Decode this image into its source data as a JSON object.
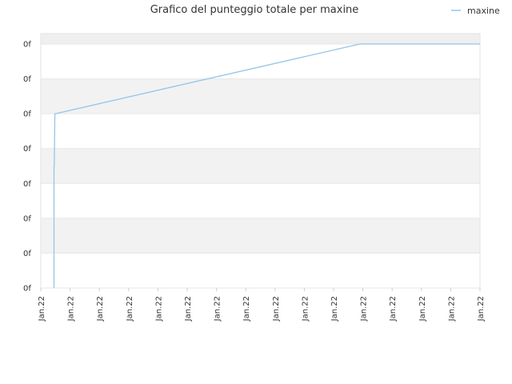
{
  "chart_data": {
    "type": "line",
    "title": "Grafico del punteggio totale per maxine",
    "xlabel": "",
    "ylabel": "",
    "legend_position": "top-right",
    "grid": true,
    "x_tick_labels": [
      "Jan.22",
      "Jan.22",
      "Jan.22",
      "Jan.22",
      "Jan.22",
      "Jan.22",
      "Jan.22",
      "Jan.22",
      "Jan.22",
      "Jan.22",
      "Jan.22",
      "Jan.22",
      "Jan.22",
      "Jan.22",
      "Jan.22",
      "Jan.22"
    ],
    "y_tick_labels": [
      "0f",
      "0f",
      "0f",
      "0f",
      "0f",
      "0f",
      "0f",
      "0f"
    ],
    "xlim": [
      0,
      15
    ],
    "ylim": [
      0,
      7
    ],
    "series": [
      {
        "name": "maxine",
        "color": "#92c5ec",
        "x": [
          0.45,
          0.45,
          0.46,
          0.48,
          0.5,
          10.9,
          15.0
        ],
        "y": [
          0,
          3.5,
          3.5,
          5.0,
          5.0,
          7.0,
          7.0
        ]
      }
    ]
  }
}
